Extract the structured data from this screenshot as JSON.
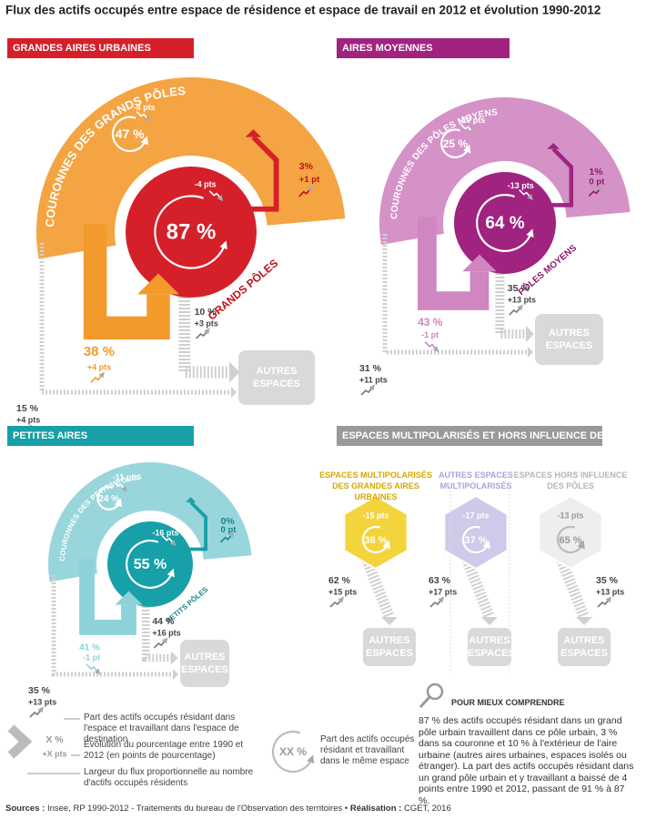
{
  "title": "Flux des actifs occupés entre espace de résidence et espace de travail en 2012 et évolution 1990-2012",
  "panels": [
    {
      "header": "GRANDES AIRES URBAINES",
      "ring_label": "COURONNES DES GRANDS PÔLES",
      "core_label": "GRANDS PÔLES",
      "ring_share": "47 %",
      "ring_change": "-8 pts",
      "core_share": "87 %",
      "core_change": "-4 pts",
      "out_share": "3%",
      "out_change": "+1 pt",
      "ring_to_core": "38 %",
      "ring_to_core_change": "+4 pts",
      "core_to_other": "10 %",
      "core_to_other_change": "+3 pts",
      "ring_to_other": "15 %",
      "ring_to_other_change": "+4 pts",
      "other": "AUTRES ESPACES"
    },
    {
      "header": "AIRES MOYENNES",
      "ring_label": "COURONNES DES PÔLES MOYENS",
      "core_label": "PÔLES MOYENS",
      "ring_share": "25 %",
      "ring_change": "-10 pts",
      "core_share": "64 %",
      "core_change": "-13 pts",
      "out_share": "1%",
      "out_change": "0 pt",
      "ring_to_core": "43 %",
      "ring_to_core_change": "-1 pt",
      "core_to_other": "35 %",
      "core_to_other_change": "+13 pts",
      "ring_to_other": "31 %",
      "ring_to_other_change": "+11 pts",
      "other": "AUTRES ESPACES"
    },
    {
      "header": "PETITES AIRES",
      "ring_label": "COURONNES DES PETITS PÔLES",
      "core_label": "PETITS PÔLES",
      "ring_share": "24 %",
      "ring_change": "-11 pts",
      "core_share": "55 %",
      "core_change": "-16 pts",
      "out_share": "0%",
      "out_change": "0 pt",
      "ring_to_core": "41 %",
      "ring_to_core_change": "-1 pt",
      "core_to_other": "44 %",
      "core_to_other_change": "+16 pts",
      "ring_to_other": "35 %",
      "ring_to_other_change": "+13 pts",
      "other": "AUTRES ESPACES"
    },
    {
      "header": "ESPACES MULTIPOLARISÉS ET HORS INFLUENCE DES PÔLES",
      "other": "AUTRES ESPACES",
      "groups": [
        {
          "label": "ESPACES MULTIPOLARISÉS DES GRANDES AIRES URBAINES",
          "share": "38 %",
          "change": "-15 pts",
          "out_share": "62 %",
          "out_change": "+15 pts"
        },
        {
          "label": "AUTRES ESPACES MULTIPOLARISÉS",
          "share": "37 %",
          "change": "-17 pts",
          "out_share": "63 %",
          "out_change": "+17 pts"
        },
        {
          "label": "ESPACES HORS INFLUENCE DES PÔLES",
          "share": "65 %",
          "change": "-13 pts",
          "out_share": "35 %",
          "out_change": "+13 pts"
        }
      ]
    }
  ],
  "legend": {
    "share_symbol": "X %",
    "change_symbol": "+X pts",
    "share_text": "Part des actifs occupés résidant dans l'espace et travaillant dans l'espace de destination",
    "change_text": "Évolution du pourcentage entre 1990 et 2012 (en points de pourcentage)",
    "width_text": "Largeur du flux proportionnelle au nombre d'actifs occupés résidents",
    "same_symbol": "XX %",
    "same_text": "Part des actifs occupés résidant et travaillant dans le même espace"
  },
  "explanation": {
    "title": "POUR MIEUX COMPRENDRE",
    "text": "87 % des actifs occupés résidant dans un grand pôle urbain travaillent dans ce pôle urbain, 3 % dans sa couronne et 10 % à l'extérieur de l'aire urbaine (autres aires urbaines, espaces isolés ou étranger). La part des actifs occupés résidant dans un grand pôle urbain et y travaillant a baissé de 4 points entre 1990 et 2012, passant de 91 % à 87 %."
  },
  "sources": {
    "label": "Sources :",
    "text": "Insee, RP 1990-2012  - Traitements du bureau de l'Observation des territoires •",
    "credit_label": "Réalisation :",
    "credit": "CGET, 2016"
  }
}
